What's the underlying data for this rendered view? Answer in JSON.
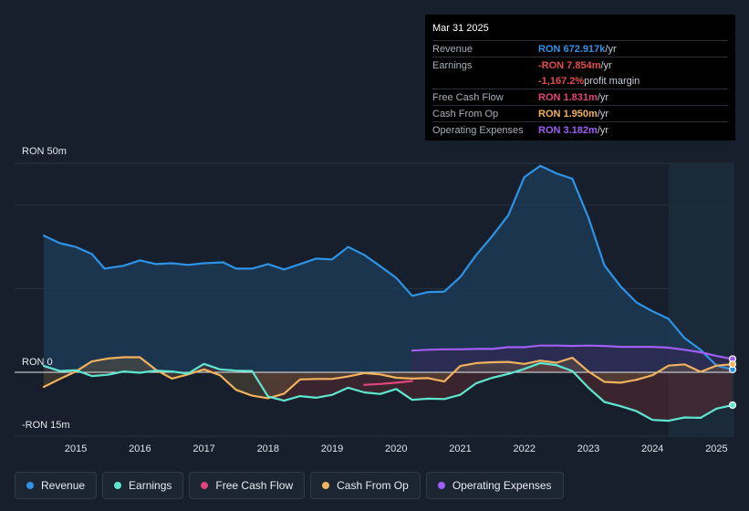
{
  "tooltip": {
    "date": "Mar 31 2025",
    "rows": [
      {
        "label": "Revenue",
        "value": "RON 672.917k",
        "unit": "/yr",
        "color": "#2e93e6"
      },
      {
        "label": "Earnings",
        "value": "-RON 7.854m",
        "unit": "/yr",
        "color": "#e54b4b"
      },
      {
        "label": "",
        "value": "-1,167.2%",
        "unit": "profit margin",
        "color": "#e54b4b"
      },
      {
        "label": "Free Cash Flow",
        "value": "RON 1.831m",
        "unit": "/yr",
        "color": "#e0457b"
      },
      {
        "label": "Cash From Op",
        "value": "RON 1.950m",
        "unit": "/yr",
        "color": "#f0b25c"
      },
      {
        "label": "Operating Expenses",
        "value": "RON 3.182m",
        "unit": "/yr",
        "color": "#a05ef5"
      }
    ]
  },
  "legend": [
    {
      "label": "Revenue",
      "color": "#2e93e6"
    },
    {
      "label": "Earnings",
      "color": "#5ee7d0"
    },
    {
      "label": "Free Cash Flow",
      "color": "#e0457b"
    },
    {
      "label": "Cash From Op",
      "color": "#f0b25c"
    },
    {
      "label": "Operating Expenses",
      "color": "#a05ef5"
    }
  ],
  "chart_data": {
    "type": "area",
    "y_axis_labels": {
      "top": "RON 50m",
      "zero": "RON 0",
      "bottom": "-RON 15m"
    },
    "ylim": [
      -15,
      50
    ],
    "xlim": [
      2014.5,
      2025.25
    ],
    "x_ticks": [
      "2015",
      "2016",
      "2017",
      "2018",
      "2019",
      "2020",
      "2021",
      "2022",
      "2023",
      "2024",
      "2025"
    ],
    "forecast_start": 2024.25,
    "series": [
      {
        "name": "Revenue",
        "color": "#2e93e6",
        "points": [
          [
            2014.5,
            32.7
          ],
          [
            2014.75,
            30.9
          ],
          [
            2015.0,
            30.0
          ],
          [
            2015.25,
            28.3
          ],
          [
            2015.45,
            24.8
          ],
          [
            2015.75,
            25.5
          ],
          [
            2016.0,
            26.8
          ],
          [
            2016.25,
            25.9
          ],
          [
            2016.5,
            26.1
          ],
          [
            2016.75,
            25.7
          ],
          [
            2017.0,
            26.1
          ],
          [
            2017.3,
            26.3
          ],
          [
            2017.5,
            24.8
          ],
          [
            2017.75,
            24.8
          ],
          [
            2018.0,
            25.9
          ],
          [
            2018.25,
            24.6
          ],
          [
            2018.5,
            25.9
          ],
          [
            2018.75,
            27.2
          ],
          [
            2019.0,
            27.0
          ],
          [
            2019.25,
            30.0
          ],
          [
            2019.5,
            28.1
          ],
          [
            2019.75,
            25.4
          ],
          [
            2020.0,
            22.6
          ],
          [
            2020.25,
            18.3
          ],
          [
            2020.5,
            19.2
          ],
          [
            2020.75,
            19.3
          ],
          [
            2021.0,
            22.8
          ],
          [
            2021.25,
            28.1
          ],
          [
            2021.5,
            32.6
          ],
          [
            2021.75,
            37.6
          ],
          [
            2022.0,
            46.7
          ],
          [
            2022.25,
            49.4
          ],
          [
            2022.5,
            47.6
          ],
          [
            2022.75,
            46.3
          ],
          [
            2023.0,
            37.0
          ],
          [
            2023.25,
            25.6
          ],
          [
            2023.5,
            20.6
          ],
          [
            2023.75,
            16.7
          ],
          [
            2024.0,
            14.6
          ],
          [
            2024.25,
            12.8
          ],
          [
            2024.5,
            8.2
          ],
          [
            2024.75,
            5.4
          ],
          [
            2025.0,
            1.6
          ],
          [
            2025.25,
            0.67
          ]
        ]
      },
      {
        "name": "Earnings",
        "color": "#5ee7d0",
        "points": [
          [
            2014.5,
            1.5
          ],
          [
            2014.75,
            0.3
          ],
          [
            2015.0,
            0.5
          ],
          [
            2015.25,
            -0.9
          ],
          [
            2015.5,
            -0.6
          ],
          [
            2015.75,
            0.2
          ],
          [
            2016.0,
            -0.1
          ],
          [
            2016.25,
            0.4
          ],
          [
            2016.5,
            0.2
          ],
          [
            2016.75,
            -0.3
          ],
          [
            2017.0,
            2.0
          ],
          [
            2017.25,
            0.7
          ],
          [
            2017.5,
            0.4
          ],
          [
            2017.75,
            0.3
          ],
          [
            2018.0,
            -5.8
          ],
          [
            2018.25,
            -6.8
          ],
          [
            2018.5,
            -5.7
          ],
          [
            2018.75,
            -6.1
          ],
          [
            2019.0,
            -5.4
          ],
          [
            2019.25,
            -3.7
          ],
          [
            2019.5,
            -4.8
          ],
          [
            2019.75,
            -5.2
          ],
          [
            2020.0,
            -4.0
          ],
          [
            2020.25,
            -6.6
          ],
          [
            2020.5,
            -6.3
          ],
          [
            2020.75,
            -6.4
          ],
          [
            2021.0,
            -5.4
          ],
          [
            2021.25,
            -2.6
          ],
          [
            2021.5,
            -1.3
          ],
          [
            2021.75,
            -0.4
          ],
          [
            2022.0,
            0.8
          ],
          [
            2022.25,
            2.2
          ],
          [
            2022.5,
            1.7
          ],
          [
            2022.75,
            0.3
          ],
          [
            2023.0,
            -3.7
          ],
          [
            2023.25,
            -7.1
          ],
          [
            2023.5,
            -8.1
          ],
          [
            2023.75,
            -9.3
          ],
          [
            2024.0,
            -11.4
          ],
          [
            2024.25,
            -11.6
          ],
          [
            2024.5,
            -10.8
          ],
          [
            2024.75,
            -10.9
          ],
          [
            2025.0,
            -8.7
          ],
          [
            2025.25,
            -7.85
          ]
        ]
      },
      {
        "name": "Free Cash Flow",
        "color": "#e0457b",
        "points": [
          [
            2019.5,
            -3.0
          ],
          [
            2019.75,
            -2.8
          ],
          [
            2020.0,
            -2.5
          ],
          [
            2020.25,
            -2.1
          ]
        ]
      },
      {
        "name": "Cash From Op",
        "color": "#f0b25c",
        "points": [
          [
            2014.5,
            -3.5
          ],
          [
            2014.75,
            -1.6
          ],
          [
            2015.0,
            0.2
          ],
          [
            2015.25,
            2.6
          ],
          [
            2015.5,
            3.3
          ],
          [
            2015.75,
            3.6
          ],
          [
            2016.0,
            3.6
          ],
          [
            2016.25,
            0.6
          ],
          [
            2016.5,
            -1.5
          ],
          [
            2016.75,
            -0.5
          ],
          [
            2017.0,
            0.7
          ],
          [
            2017.25,
            -0.7
          ],
          [
            2017.5,
            -4.2
          ],
          [
            2017.75,
            -5.6
          ],
          [
            2018.0,
            -6.2
          ],
          [
            2018.25,
            -5.1
          ],
          [
            2018.5,
            -1.7
          ],
          [
            2018.75,
            -1.6
          ],
          [
            2019.0,
            -1.6
          ],
          [
            2019.25,
            -1.0
          ],
          [
            2019.5,
            -0.2
          ],
          [
            2019.75,
            -0.5
          ],
          [
            2020.0,
            -1.3
          ],
          [
            2020.25,
            -1.5
          ],
          [
            2020.5,
            -1.4
          ],
          [
            2020.75,
            -2.2
          ],
          [
            2021.0,
            1.5
          ],
          [
            2021.25,
            2.2
          ],
          [
            2021.5,
            2.4
          ],
          [
            2021.75,
            2.5
          ],
          [
            2022.0,
            2.0
          ],
          [
            2022.25,
            2.8
          ],
          [
            2022.5,
            2.3
          ],
          [
            2022.75,
            3.5
          ],
          [
            2023.0,
            0.2
          ],
          [
            2023.25,
            -2.3
          ],
          [
            2023.5,
            -2.5
          ],
          [
            2023.75,
            -1.8
          ],
          [
            2024.0,
            -0.7
          ],
          [
            2024.25,
            1.6
          ],
          [
            2024.5,
            1.9
          ],
          [
            2024.75,
            0.1
          ],
          [
            2025.0,
            1.6
          ],
          [
            2025.25,
            1.95
          ]
        ]
      },
      {
        "name": "Operating Expenses",
        "color": "#a05ef5",
        "points": [
          [
            2020.25,
            5.2
          ],
          [
            2020.5,
            5.4
          ],
          [
            2020.75,
            5.5
          ],
          [
            2021.0,
            5.5
          ],
          [
            2021.25,
            5.6
          ],
          [
            2021.5,
            5.6
          ],
          [
            2021.75,
            6.0
          ],
          [
            2022.0,
            6.0
          ],
          [
            2022.25,
            6.4
          ],
          [
            2022.5,
            6.4
          ],
          [
            2022.75,
            6.3
          ],
          [
            2023.0,
            6.4
          ],
          [
            2023.25,
            6.3
          ],
          [
            2023.5,
            6.1
          ],
          [
            2023.75,
            6.1
          ],
          [
            2024.0,
            6.1
          ],
          [
            2024.25,
            5.9
          ],
          [
            2024.5,
            5.4
          ],
          [
            2024.75,
            4.8
          ],
          [
            2025.0,
            3.9
          ],
          [
            2025.25,
            3.18
          ]
        ]
      }
    ]
  }
}
